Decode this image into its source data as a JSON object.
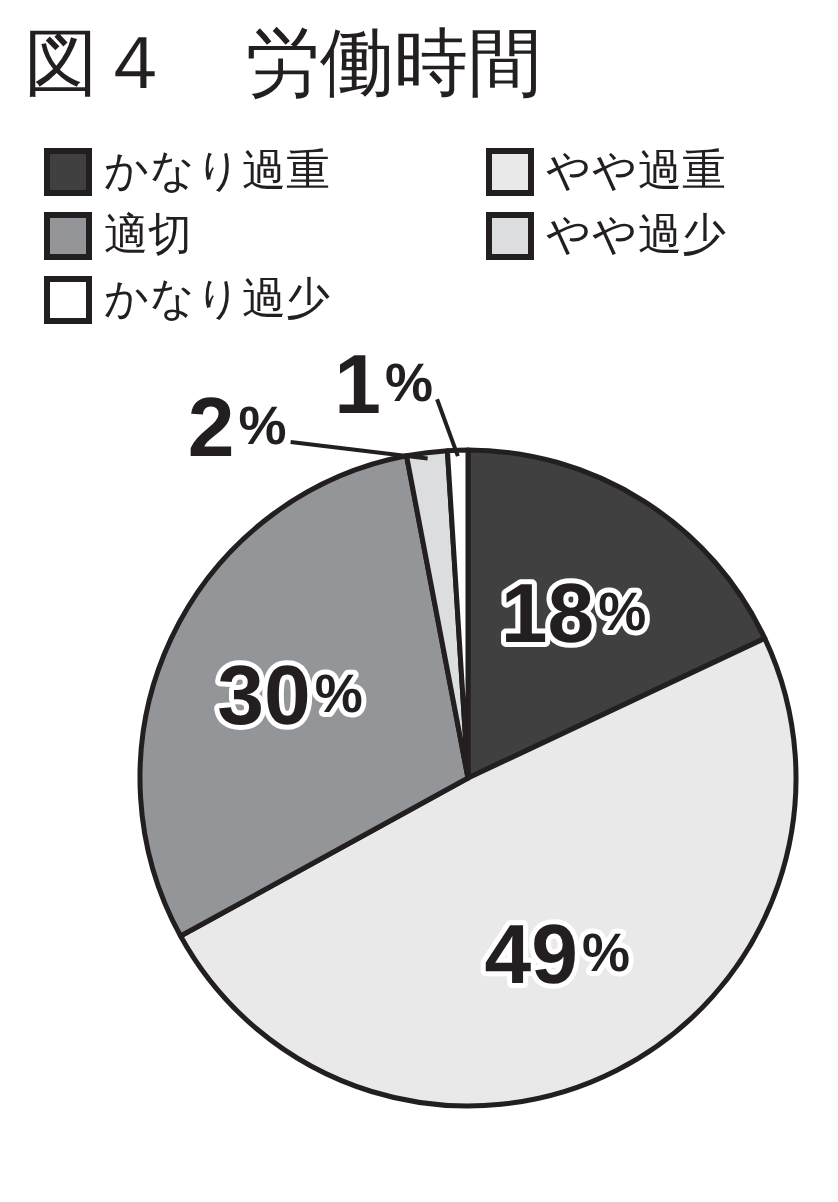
{
  "chart_data": {
    "type": "pie",
    "title": "図４　労働時間",
    "categories": [
      "かなり過重",
      "やや過重",
      "適切",
      "やや過少",
      "かなり過少"
    ],
    "values": [
      18,
      49,
      30,
      2,
      1
    ],
    "colors": [
      "#404041",
      "#e9e9e9",
      "#939598",
      "#dcdddf",
      "#ffffff"
    ],
    "value_labels": [
      "18%",
      "49%",
      "30%",
      "2%",
      "1%"
    ],
    "legend": "top"
  }
}
